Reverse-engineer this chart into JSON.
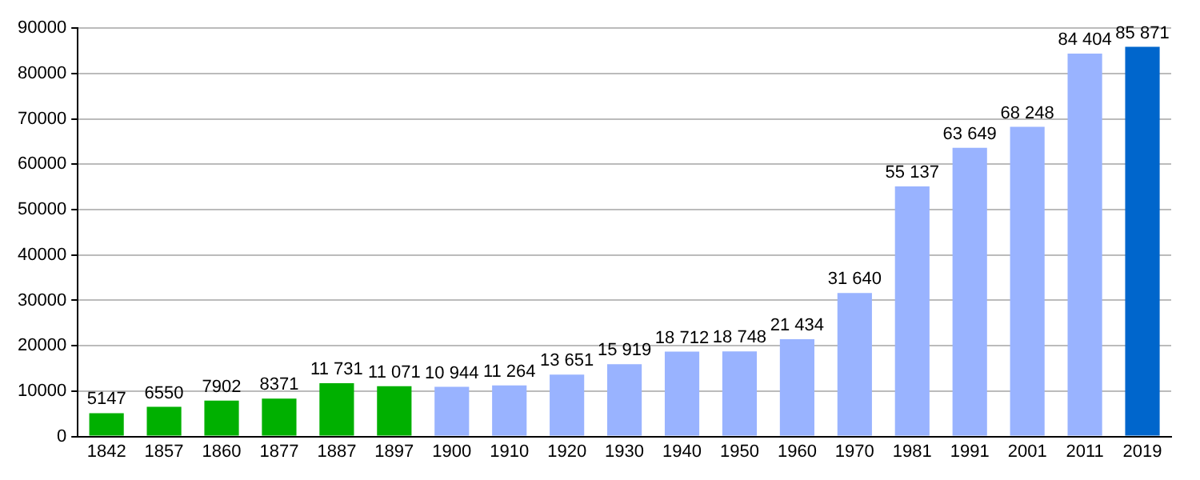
{
  "chart_data": {
    "type": "bar",
    "categories": [
      "1842",
      "1857",
      "1860",
      "1877",
      "1887",
      "1897",
      "1900",
      "1910",
      "1920",
      "1930",
      "1940",
      "1950",
      "1960",
      "1970",
      "1981",
      "1991",
      "2001",
      "2011",
      "2019"
    ],
    "values": [
      5147,
      6550,
      7902,
      8371,
      11731,
      11071,
      10944,
      11264,
      13651,
      15919,
      18712,
      18748,
      21434,
      31640,
      55137,
      63649,
      68248,
      84404,
      85871
    ],
    "value_labels": [
      "5147",
      "6550",
      "7902",
      "8371",
      "11 731",
      "11 071",
      "10 944",
      "11 264",
      "13 651",
      "15 919",
      "18 712",
      "18 748",
      "21 434",
      "31 640",
      "55 137",
      "63 649",
      "68 248",
      "84 404",
      "85 871"
    ],
    "colors": [
      "#00b000",
      "#00b000",
      "#00b000",
      "#00b000",
      "#00b000",
      "#00b000",
      "#99b3ff",
      "#99b3ff",
      "#99b3ff",
      "#99b3ff",
      "#99b3ff",
      "#99b3ff",
      "#99b3ff",
      "#99b3ff",
      "#99b3ff",
      "#99b3ff",
      "#99b3ff",
      "#99b3ff",
      "#0066cc"
    ],
    "ylim": [
      0,
      90000
    ],
    "yticks": [
      0,
      10000,
      20000,
      30000,
      40000,
      50000,
      60000,
      70000,
      80000,
      90000
    ],
    "grid": "y"
  }
}
